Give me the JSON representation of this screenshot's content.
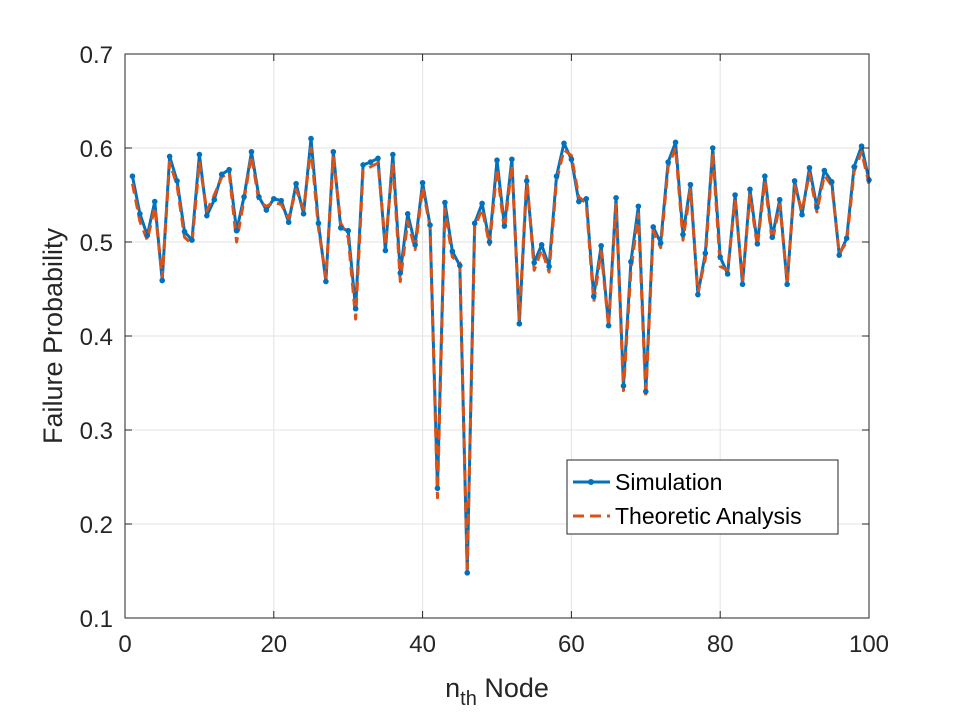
{
  "chart_data": {
    "type": "line",
    "xlabel_main": "n",
    "xlabel_sub": "th",
    "xlabel_rest": " Node",
    "ylabel": "Failure Probability",
    "xlim": [
      0,
      100
    ],
    "ylim": [
      0.1,
      0.7
    ],
    "xticks": [
      0,
      20,
      40,
      60,
      80,
      100
    ],
    "xtick_labels": [
      "0",
      "20",
      "40",
      "60",
      "80",
      "100"
    ],
    "yticks": [
      0.1,
      0.2,
      0.3,
      0.4,
      0.5,
      0.6,
      0.7
    ],
    "ytick_labels": [
      "0.1",
      "0.2",
      "0.3",
      "0.4",
      "0.5",
      "0.6",
      "0.7"
    ],
    "grid": true,
    "legend_position": "bottom-right",
    "x": [
      1,
      2,
      3,
      4,
      5,
      6,
      7,
      8,
      9,
      10,
      11,
      12,
      13,
      14,
      15,
      16,
      17,
      18,
      19,
      20,
      21,
      22,
      23,
      24,
      25,
      26,
      27,
      28,
      29,
      30,
      31,
      32,
      33,
      34,
      35,
      36,
      37,
      38,
      39,
      40,
      41,
      42,
      43,
      44,
      45,
      46,
      47,
      48,
      49,
      50,
      51,
      52,
      53,
      54,
      55,
      56,
      57,
      58,
      59,
      60,
      61,
      62,
      63,
      64,
      65,
      66,
      67,
      68,
      69,
      70,
      71,
      72,
      73,
      74,
      75,
      76,
      77,
      78,
      79,
      80,
      81,
      82,
      83,
      84,
      85,
      86,
      87,
      88,
      89,
      90,
      91,
      92,
      93,
      94,
      95,
      96,
      97,
      98,
      99,
      100
    ],
    "series": [
      {
        "name": "Simulation",
        "color": "#0072BD",
        "style": "solid-marker",
        "values": [
          0.57,
          0.53,
          0.507,
          0.543,
          0.459,
          0.591,
          0.565,
          0.511,
          0.502,
          0.593,
          0.528,
          0.545,
          0.572,
          0.577,
          0.512,
          0.548,
          0.596,
          0.548,
          0.534,
          0.546,
          0.544,
          0.521,
          0.562,
          0.53,
          0.61,
          0.52,
          0.458,
          0.596,
          0.515,
          0.512,
          0.429,
          0.582,
          0.585,
          0.589,
          0.491,
          0.593,
          0.467,
          0.53,
          0.497,
          0.563,
          0.518,
          0.238,
          0.542,
          0.49,
          0.475,
          0.148,
          0.52,
          0.541,
          0.5,
          0.587,
          0.517,
          0.588,
          0.413,
          0.565,
          0.478,
          0.497,
          0.474,
          0.57,
          0.605,
          0.588,
          0.543,
          0.546,
          0.442,
          0.496,
          0.411,
          0.547,
          0.347,
          0.479,
          0.538,
          0.341,
          0.516,
          0.499,
          0.585,
          0.606,
          0.508,
          0.561,
          0.444,
          0.488,
          0.6,
          0.484,
          0.466,
          0.55,
          0.455,
          0.556,
          0.498,
          0.57,
          0.505,
          0.545,
          0.455,
          0.565,
          0.529,
          0.579,
          0.537,
          0.576,
          0.564,
          0.486,
          0.504,
          0.58,
          0.602,
          0.566
        ]
      },
      {
        "name": "Theoretic Analysis",
        "color": "#D95319",
        "style": "dashed",
        "values": [
          0.562,
          0.522,
          0.502,
          0.537,
          0.462,
          0.585,
          0.56,
          0.505,
          0.498,
          0.585,
          0.533,
          0.55,
          0.569,
          0.574,
          0.5,
          0.545,
          0.592,
          0.543,
          0.538,
          0.542,
          0.54,
          0.525,
          0.556,
          0.535,
          0.6,
          0.515,
          0.462,
          0.59,
          0.52,
          0.505,
          0.418,
          0.576,
          0.58,
          0.584,
          0.497,
          0.585,
          0.458,
          0.522,
          0.492,
          0.558,
          0.516,
          0.228,
          0.535,
          0.484,
          0.478,
          0.152,
          0.516,
          0.535,
          0.497,
          0.578,
          0.512,
          0.582,
          0.418,
          0.57,
          0.47,
          0.492,
          0.468,
          0.565,
          0.598,
          0.592,
          0.548,
          0.541,
          0.436,
          0.49,
          0.41,
          0.54,
          0.342,
          0.47,
          0.53,
          0.335,
          0.512,
          0.494,
          0.58,
          0.6,
          0.502,
          0.556,
          0.446,
          0.482,
          0.595,
          0.474,
          0.47,
          0.545,
          0.458,
          0.55,
          0.495,
          0.565,
          0.5,
          0.54,
          0.458,
          0.56,
          0.533,
          0.573,
          0.532,
          0.571,
          0.56,
          0.488,
          0.5,
          0.575,
          0.596,
          0.562
        ]
      }
    ]
  }
}
